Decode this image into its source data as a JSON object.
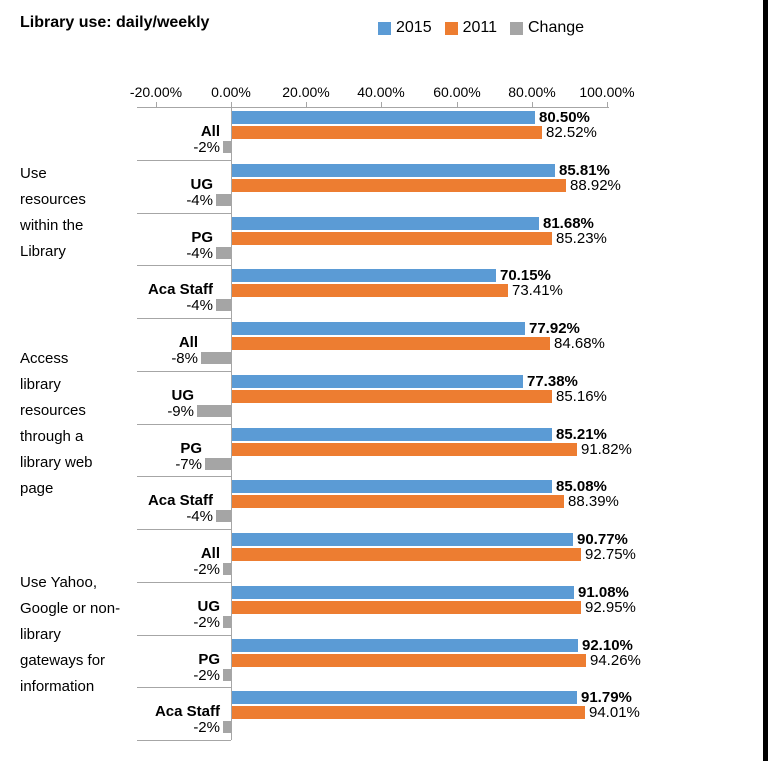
{
  "title": "Library use: daily/weekly",
  "legend": {
    "items": [
      {
        "label": "2015",
        "color": "#5B9BD5"
      },
      {
        "label": "2011",
        "color": "#ED7D31"
      },
      {
        "label": "Change",
        "color": "#A5A5A5"
      }
    ]
  },
  "colors": {
    "bar2015": "#5B9BD5",
    "bar2011": "#ED7D31",
    "barChange": "#A5A5A5",
    "axisLine": "#A6A6A6",
    "text": "#000000"
  },
  "chart_data": {
    "type": "bar",
    "orientation": "horizontal",
    "title": "Library use: daily/weekly",
    "series_names": [
      "2015",
      "2011",
      "Change"
    ],
    "x_axis": {
      "position": "top",
      "min": -20,
      "max": 100,
      "tick_values": [
        -20,
        0,
        20,
        40,
        60,
        80,
        100
      ],
      "ticks": [
        "-20.00%",
        "0.00%",
        "20.00%",
        "40.00%",
        "60.00%",
        "80.00%",
        "100.00%"
      ]
    },
    "groups": [
      {
        "label": "Use\nresources\nwithin the\nLibrary",
        "rows": [
          {
            "category": "All",
            "y2015": 80.5,
            "y2011": 82.52,
            "change": -2,
            "label_2015": "80.50%",
            "label_2011": "82.52%",
            "label_change": "-2%"
          },
          {
            "category": "UG",
            "y2015": 85.81,
            "y2011": 88.92,
            "change": -4,
            "label_2015": "85.81%",
            "label_2011": "88.92%",
            "label_change": "-4%"
          },
          {
            "category": "PG",
            "y2015": 81.68,
            "y2011": 85.23,
            "change": -4,
            "label_2015": "81.68%",
            "label_2011": "85.23%",
            "label_change": "-4%"
          },
          {
            "category": "Aca Staff",
            "y2015": 70.15,
            "y2011": 73.41,
            "change": -4,
            "label_2015": "70.15%",
            "label_2011": "73.41%",
            "label_change": "-4%"
          }
        ]
      },
      {
        "label": "Access\nlibrary\nresources\nthrough a\nlibrary web\npage",
        "rows": [
          {
            "category": "All",
            "y2015": 77.92,
            "y2011": 84.68,
            "change": -8,
            "label_2015": "77.92%",
            "label_2011": "84.68%",
            "label_change": "-8%"
          },
          {
            "category": "UG",
            "y2015": 77.38,
            "y2011": 85.16,
            "change": -9,
            "label_2015": "77.38%",
            "label_2011": "85.16%",
            "label_change": "-9%"
          },
          {
            "category": "PG",
            "y2015": 85.21,
            "y2011": 91.82,
            "change": -7,
            "label_2015": "85.21%",
            "label_2011": "91.82%",
            "label_change": "-7%"
          },
          {
            "category": "Aca Staff",
            "y2015": 85.08,
            "y2011": 88.39,
            "change": -4,
            "label_2015": "85.08%",
            "label_2011": "88.39%",
            "label_change": "-4%"
          }
        ]
      },
      {
        "label": "Use Yahoo,\nGoogle or non-\nlibrary\ngateways for\ninformation",
        "rows": [
          {
            "category": "All",
            "y2015": 90.77,
            "y2011": 92.75,
            "change": -2,
            "label_2015": "90.77%",
            "label_2011": "92.75%",
            "label_change": "-2%"
          },
          {
            "category": "UG",
            "y2015": 91.08,
            "y2011": 92.95,
            "change": -2,
            "label_2015": "91.08%",
            "label_2011": "92.95%",
            "label_change": "-2%"
          },
          {
            "category": "PG",
            "y2015": 92.1,
            "y2011": 94.26,
            "change": -2,
            "label_2015": "92.10%",
            "label_2011": "94.26%",
            "label_change": "-2%"
          },
          {
            "category": "Aca Staff",
            "y2015": 91.79,
            "y2011": 94.01,
            "change": -2,
            "label_2015": "91.79%",
            "label_2011": "94.01%",
            "label_change": "-2%"
          }
        ]
      }
    ]
  }
}
